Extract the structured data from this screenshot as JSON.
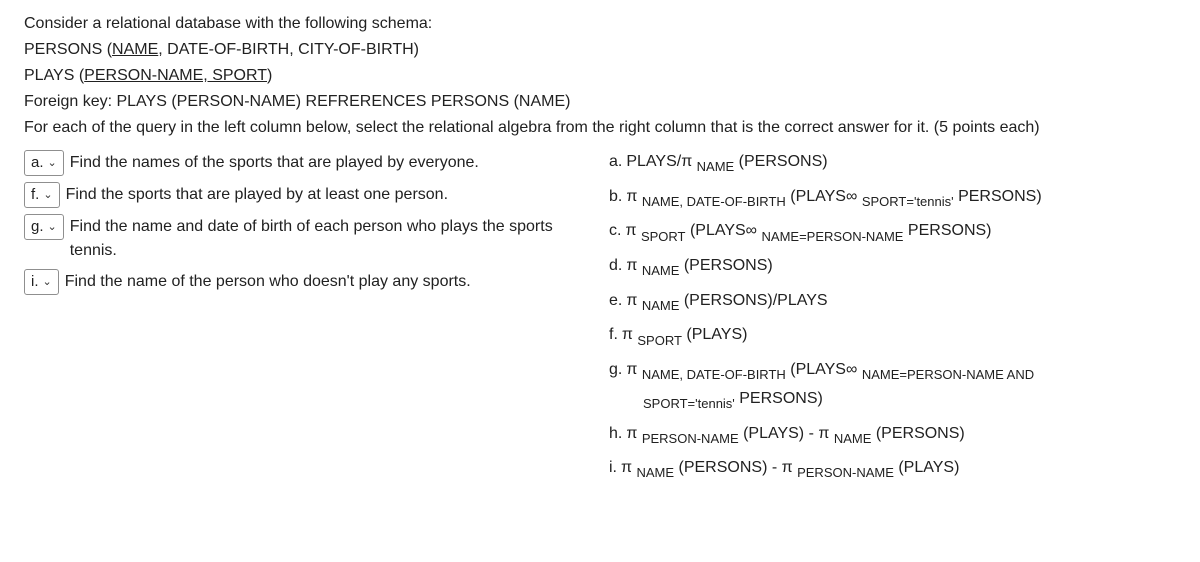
{
  "intro": {
    "line1": "Consider a relational database with the following schema:",
    "line2_a": "PERSONS (",
    "line2_b": "NAME",
    "line2_c": ", DATE-OF-BIRTH, CITY-OF-BIRTH)",
    "line3_a": "PLAYS (",
    "line3_b": "PERSON-NAME, SPORT",
    "line3_c": ")",
    "line4": "Foreign key: PLAYS (PERSON-NAME) REFRERENCES PERSONS (NAME)",
    "line5": "For each of the query in the left column below, select the relational algebra from the right column that is the correct answer for it. (5 points each)"
  },
  "questions": [
    {
      "sel": "a.",
      "text": "Find the names of the sports that are played by everyone."
    },
    {
      "sel": "f.",
      "text": "Find the sports that are played by at least one person."
    },
    {
      "sel": "g.",
      "text": "Find the name and date of birth of each person who plays the sports tennis."
    },
    {
      "sel": "i.",
      "text": "Find the name of the person who doesn't play any sports."
    }
  ],
  "options": {
    "a": {
      "letter": "a.",
      "pre": "PLAYS/π ",
      "sub": "NAME",
      "post": " (PERSONS)"
    },
    "b": {
      "letter": "b.",
      "pre": "π ",
      "sub": "NAME, DATE-OF-BIRTH",
      "mid": " (PLAYS∞ ",
      "sub2": "SPORT='tennis'",
      "post": " PERSONS)"
    },
    "c": {
      "letter": "c.",
      "pre": "π ",
      "sub": "SPORT",
      "mid": " (PLAYS∞ ",
      "sub2": "NAME=PERSON-NAME",
      "post": "  PERSONS)"
    },
    "d": {
      "letter": "d.",
      "pre": "π ",
      "sub": "NAME",
      "post": " (PERSONS)"
    },
    "e": {
      "letter": "e.",
      "pre": "π ",
      "sub": "NAME",
      "post": " (PERSONS)/PLAYS"
    },
    "f": {
      "letter": "f.",
      "pre": " π ",
      "sub": "SPORT",
      "post": " (PLAYS)"
    },
    "g": {
      "letter": "g.",
      "pre": "π ",
      "sub": "NAME, DATE-OF-BIRTH",
      "mid": " (PLAYS∞ ",
      "sub2": "NAME=PERSON-NAME AND",
      "cont_sub": "SPORT='tennis'",
      "cont_post": " PERSONS)"
    },
    "h": {
      "letter": "h.",
      "pre": "π ",
      "sub": "PERSON-NAME",
      "mid": " (PLAYS) - π ",
      "sub2": "NAME",
      "post": " (PERSONS)"
    },
    "i": {
      "letter": "i.",
      "pre": " π ",
      "sub": "NAME",
      "mid": " (PERSONS) - π ",
      "sub2": "PERSON-NAME",
      "post": " (PLAYS)"
    }
  }
}
